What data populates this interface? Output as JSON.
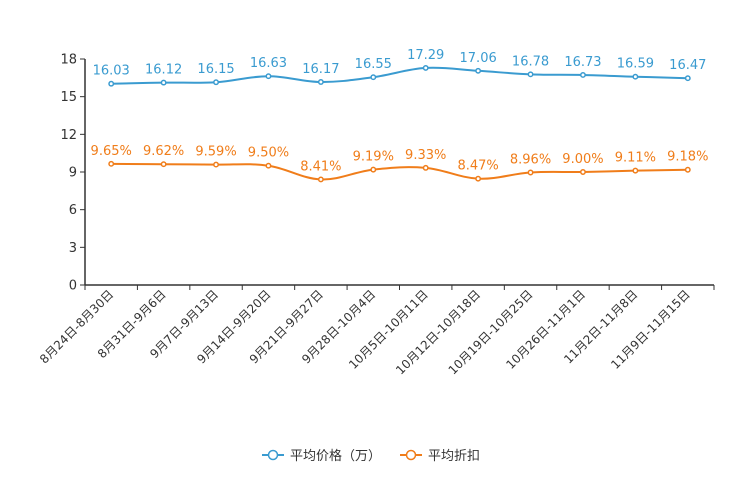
{
  "chart_data": {
    "type": "line",
    "categories": [
      "8月24日-8月30日",
      "8月31日-9月6日",
      "9月7日-9月13日",
      "9月14日-9月20日",
      "9月21日-9月27日",
      "9月28日-10月4日",
      "10月5日-10月11日",
      "10月12日-10月18日",
      "10月19日-10月25日",
      "10月26日-11月1日",
      "11月2日-11月8日",
      "11月9日-11月15日"
    ],
    "ylim": [
      0,
      18
    ],
    "yticks": [
      0,
      3,
      6,
      9,
      12,
      15,
      18
    ],
    "series": [
      {
        "name": "平均价格（万）",
        "color": "#3a9bd0",
        "values": [
          16.03,
          16.12,
          16.15,
          16.63,
          16.17,
          16.55,
          17.29,
          17.06,
          16.78,
          16.73,
          16.59,
          16.47
        ],
        "labels": [
          "16.03",
          "16.12",
          "16.15",
          "16.63",
          "16.17",
          "16.55",
          "17.29",
          "17.06",
          "16.78",
          "16.73",
          "16.59",
          "16.47"
        ]
      },
      {
        "name": "平均折扣",
        "color": "#f07d1a",
        "values": [
          9.65,
          9.62,
          9.59,
          9.5,
          8.41,
          9.19,
          9.33,
          8.47,
          8.96,
          9.0,
          9.11,
          9.18
        ],
        "labels": [
          "9.65%",
          "9.62%",
          "9.59%",
          "9.50%",
          "8.41%",
          "9.19%",
          "9.33%",
          "8.47%",
          "8.96%",
          "9.00%",
          "9.11%",
          "9.18%"
        ]
      }
    ],
    "legend_position": "bottom-center",
    "grid": false
  }
}
